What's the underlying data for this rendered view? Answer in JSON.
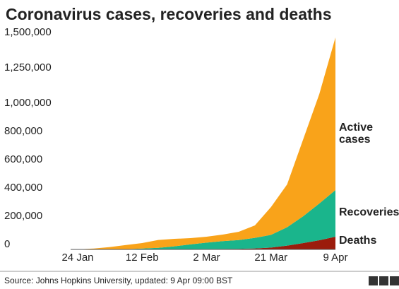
{
  "chart_data": {
    "type": "stacked-area",
    "title": "Coronavirus cases, recoveries and deaths",
    "source": "Source: Johns Hopkins University, updated: 9 Apr 09:00 BST",
    "categories": [
      "24 Jan",
      null,
      null,
      null,
      "12 Feb",
      null,
      null,
      null,
      "2 Mar",
      null,
      null,
      null,
      "21 Mar",
      null,
      null,
      null,
      "9 Apr"
    ],
    "series": [
      {
        "name": "Deaths",
        "color": "#9b1c0c",
        "values": [
          26,
          130,
          360,
          640,
          1100,
          1500,
          2100,
          2700,
          3100,
          3500,
          4300,
          7000,
          13000,
          27000,
          45000,
          65000,
          90000
        ]
      },
      {
        "name": "Recoveries",
        "color": "#1ab58c",
        "values": [
          36,
          130,
          500,
          1500,
          5000,
          10000,
          20000,
          33000,
          45000,
          55000,
          62000,
          75000,
          90000,
          130000,
          190000,
          260000,
          330000
        ]
      },
      {
        "name": "Active cases",
        "color": "#f9a31a",
        "values": [
          838,
          5740,
          16140,
          28860,
          38900,
          55500,
          52900,
          44300,
          41900,
          46500,
          58700,
          88000,
          197000,
          303000,
          545000,
          775000,
          1080000
        ]
      }
    ],
    "ylim": [
      0,
      1500000
    ],
    "yticks": [
      0,
      {
        "value": 200000,
        "label": "200,000"
      },
      {
        "value": 400000,
        "label": "400,000"
      },
      {
        "value": 600000,
        "label": "600,000"
      },
      {
        "value": 800000,
        "label": "800,000"
      },
      {
        "value": 1000000,
        "label": "1,000,000"
      },
      {
        "value": 1250000,
        "label": "1,250,000"
      },
      {
        "value": 1500000,
        "label": "1,500,000"
      }
    ],
    "grid": false
  }
}
